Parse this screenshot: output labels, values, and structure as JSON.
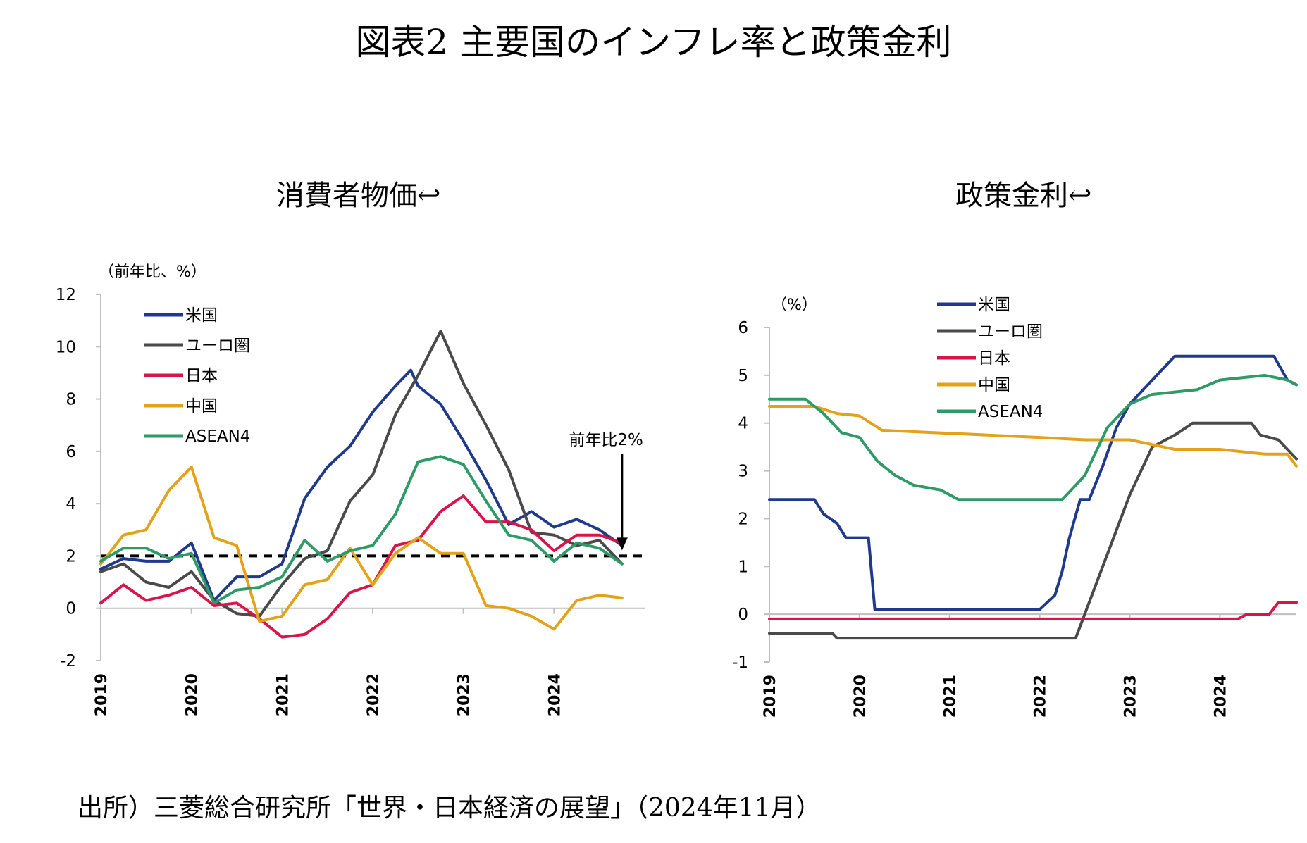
{
  "figure_title": "図表2  主要国のインフレ率と政策金利",
  "source_note": "出所）三菱総合研究所「世界・日本経済の展望」（2024年11月）",
  "colors": {
    "us": "#1F3A8C",
    "euro": "#4A4A4A",
    "japan": "#D6154A",
    "china": "#E3A21A",
    "asean4": "#2E9A66",
    "reference": "#000000",
    "axis": "#BFBFBF"
  },
  "chart_data": [
    {
      "type": "line",
      "title": "消費者物価↩",
      "ylabel": "（前年比、%）",
      "ylim": [
        -2,
        12
      ],
      "yticks": [
        -2,
        0,
        2,
        4,
        6,
        8,
        10,
        12
      ],
      "xlim": [
        2019,
        2025.0
      ],
      "xticks": [
        2019,
        2020,
        2021,
        2022,
        2023,
        2024
      ],
      "xtick_labels": [
        "2019",
        "2020",
        "2021",
        "2022",
        "2023",
        "2024"
      ],
      "legend_position": "top-left",
      "reference_line": {
        "y": 2,
        "style": "dashed"
      },
      "annotation": {
        "text": "前年比2%",
        "x": 2024.75,
        "y": 2,
        "arrow": "down"
      },
      "series": [
        {
          "name": "米国",
          "key": "us",
          "x": [
            2019,
            2019.25,
            2019.5,
            2019.75,
            2020,
            2020.25,
            2020.5,
            2020.75,
            2021,
            2021.25,
            2021.5,
            2021.75,
            2022,
            2022.25,
            2022.42,
            2022.5,
            2022.75,
            2023,
            2023.25,
            2023.5,
            2023.75,
            2024,
            2024.25,
            2024.5,
            2024.75
          ],
          "y": [
            1.5,
            1.9,
            1.8,
            1.8,
            2.5,
            0.3,
            1.2,
            1.2,
            1.7,
            4.2,
            5.4,
            6.2,
            7.5,
            8.5,
            9.1,
            8.5,
            7.8,
            6.4,
            4.9,
            3.2,
            3.7,
            3.1,
            3.4,
            3.0,
            2.4
          ]
        },
        {
          "name": "ユーロ圏",
          "key": "euro",
          "x": [
            2019,
            2019.25,
            2019.5,
            2019.75,
            2020,
            2020.25,
            2020.5,
            2020.75,
            2021,
            2021.25,
            2021.5,
            2021.75,
            2022,
            2022.25,
            2022.5,
            2022.75,
            2023,
            2023.25,
            2023.5,
            2023.75,
            2024,
            2024.25,
            2024.5,
            2024.75
          ],
          "y": [
            1.4,
            1.7,
            1.0,
            0.8,
            1.4,
            0.3,
            -0.2,
            -0.3,
            0.9,
            1.9,
            2.2,
            4.1,
            5.1,
            7.4,
            8.9,
            10.6,
            8.6,
            7.0,
            5.3,
            2.9,
            2.8,
            2.4,
            2.6,
            1.7
          ]
        },
        {
          "name": "日本",
          "key": "japan",
          "x": [
            2019,
            2019.25,
            2019.5,
            2019.75,
            2020,
            2020.25,
            2020.5,
            2020.75,
            2021,
            2021.25,
            2021.5,
            2021.75,
            2022,
            2022.25,
            2022.5,
            2022.75,
            2023,
            2023.25,
            2023.5,
            2023.75,
            2024,
            2024.25,
            2024.5,
            2024.75
          ],
          "y": [
            0.2,
            0.9,
            0.3,
            0.5,
            0.8,
            0.1,
            0.2,
            -0.4,
            -1.1,
            -1.0,
            -0.4,
            0.6,
            0.9,
            2.4,
            2.6,
            3.7,
            4.3,
            3.3,
            3.3,
            3.0,
            2.2,
            2.8,
            2.8,
            2.5
          ]
        },
        {
          "name": "中国",
          "key": "china",
          "x": [
            2019,
            2019.25,
            2019.5,
            2019.75,
            2020,
            2020.25,
            2020.5,
            2020.75,
            2021,
            2021.25,
            2021.5,
            2021.75,
            2022,
            2022.25,
            2022.5,
            2022.75,
            2023,
            2023.25,
            2023.5,
            2023.75,
            2024,
            2024.25,
            2024.5,
            2024.75
          ],
          "y": [
            1.7,
            2.8,
            3.0,
            4.5,
            5.4,
            2.7,
            2.4,
            -0.5,
            -0.3,
            0.9,
            1.1,
            2.3,
            0.9,
            2.1,
            2.7,
            2.1,
            2.1,
            0.1,
            0.0,
            -0.3,
            -0.8,
            0.3,
            0.5,
            0.4
          ]
        },
        {
          "name": "ASEAN4",
          "key": "asean4",
          "x": [
            2019,
            2019.25,
            2019.5,
            2019.75,
            2020,
            2020.25,
            2020.5,
            2020.75,
            2021,
            2021.25,
            2021.5,
            2021.75,
            2022,
            2022.25,
            2022.5,
            2022.75,
            2023,
            2023.25,
            2023.5,
            2023.75,
            2024,
            2024.25,
            2024.5,
            2024.75
          ],
          "y": [
            1.8,
            2.3,
            2.3,
            1.9,
            2.1,
            0.2,
            0.7,
            0.8,
            1.2,
            2.6,
            1.8,
            2.2,
            2.4,
            3.6,
            5.6,
            5.8,
            5.5,
            4.1,
            2.8,
            2.6,
            1.8,
            2.5,
            2.3,
            1.7
          ]
        }
      ]
    },
    {
      "type": "line",
      "title": "政策金利↩",
      "ylabel": "（%）",
      "ylim": [
        -1,
        6
      ],
      "yticks": [
        -1,
        0,
        1,
        2,
        3,
        4,
        5,
        6
      ],
      "xlim": [
        2019,
        2024.85
      ],
      "xticks": [
        2019,
        2020,
        2021,
        2022,
        2023,
        2024
      ],
      "xtick_labels": [
        "2019",
        "2020",
        "2021",
        "2022",
        "2023",
        "2024"
      ],
      "legend_position": "top-center",
      "series": [
        {
          "name": "米国",
          "key": "us",
          "x": [
            2019,
            2019.5,
            2019.6,
            2019.75,
            2019.85,
            2020.1,
            2020.17,
            2020.25,
            2022.0,
            2022.17,
            2022.25,
            2022.33,
            2022.45,
            2022.55,
            2022.7,
            2022.85,
            2023.0,
            2023.25,
            2023.5,
            2024.6,
            2024.75,
            2024.85
          ],
          "y": [
            2.4,
            2.4,
            2.1,
            1.9,
            1.6,
            1.6,
            0.1,
            0.1,
            0.1,
            0.4,
            0.9,
            1.6,
            2.4,
            2.4,
            3.1,
            3.9,
            4.4,
            4.9,
            5.4,
            5.4,
            4.9,
            4.8
          ]
        },
        {
          "name": "ユーロ圏",
          "key": "euro",
          "x": [
            2019,
            2019.7,
            2019.75,
            2022.4,
            2022.5,
            2022.65,
            2022.8,
            2023.0,
            2023.25,
            2023.5,
            2023.7,
            2024.35,
            2024.45,
            2024.65,
            2024.85
          ],
          "y": [
            -0.4,
            -0.4,
            -0.5,
            -0.5,
            0.0,
            0.75,
            1.5,
            2.5,
            3.5,
            3.75,
            4.0,
            4.0,
            3.75,
            3.65,
            3.25
          ]
        },
        {
          "name": "日本",
          "key": "japan",
          "x": [
            2019,
            2024.2,
            2024.3,
            2024.55,
            2024.65,
            2024.85
          ],
          "y": [
            -0.1,
            -0.1,
            0.0,
            0.0,
            0.25,
            0.25
          ]
        },
        {
          "name": "中国",
          "key": "china",
          "x": [
            2019,
            2019.5,
            2019.75,
            2020.0,
            2020.25,
            2022.0,
            2022.5,
            2023.0,
            2023.5,
            2024.0,
            2024.5,
            2024.75,
            2024.85
          ],
          "y": [
            4.35,
            4.35,
            4.2,
            4.15,
            3.85,
            3.7,
            3.65,
            3.65,
            3.45,
            3.45,
            3.35,
            3.35,
            3.1
          ]
        },
        {
          "name": "ASEAN4",
          "key": "asean4",
          "x": [
            2019,
            2019.4,
            2019.6,
            2019.8,
            2020.0,
            2020.2,
            2020.4,
            2020.6,
            2020.9,
            2021.1,
            2021.5,
            2022.25,
            2022.5,
            2022.75,
            2023.0,
            2023.25,
            2023.5,
            2023.75,
            2024.0,
            2024.25,
            2024.5,
            2024.75,
            2024.85
          ],
          "y": [
            4.5,
            4.5,
            4.2,
            3.8,
            3.7,
            3.2,
            2.9,
            2.7,
            2.6,
            2.4,
            2.4,
            2.4,
            2.9,
            3.9,
            4.4,
            4.6,
            4.65,
            4.7,
            4.9,
            4.95,
            5.0,
            4.9,
            4.8
          ]
        }
      ]
    }
  ]
}
